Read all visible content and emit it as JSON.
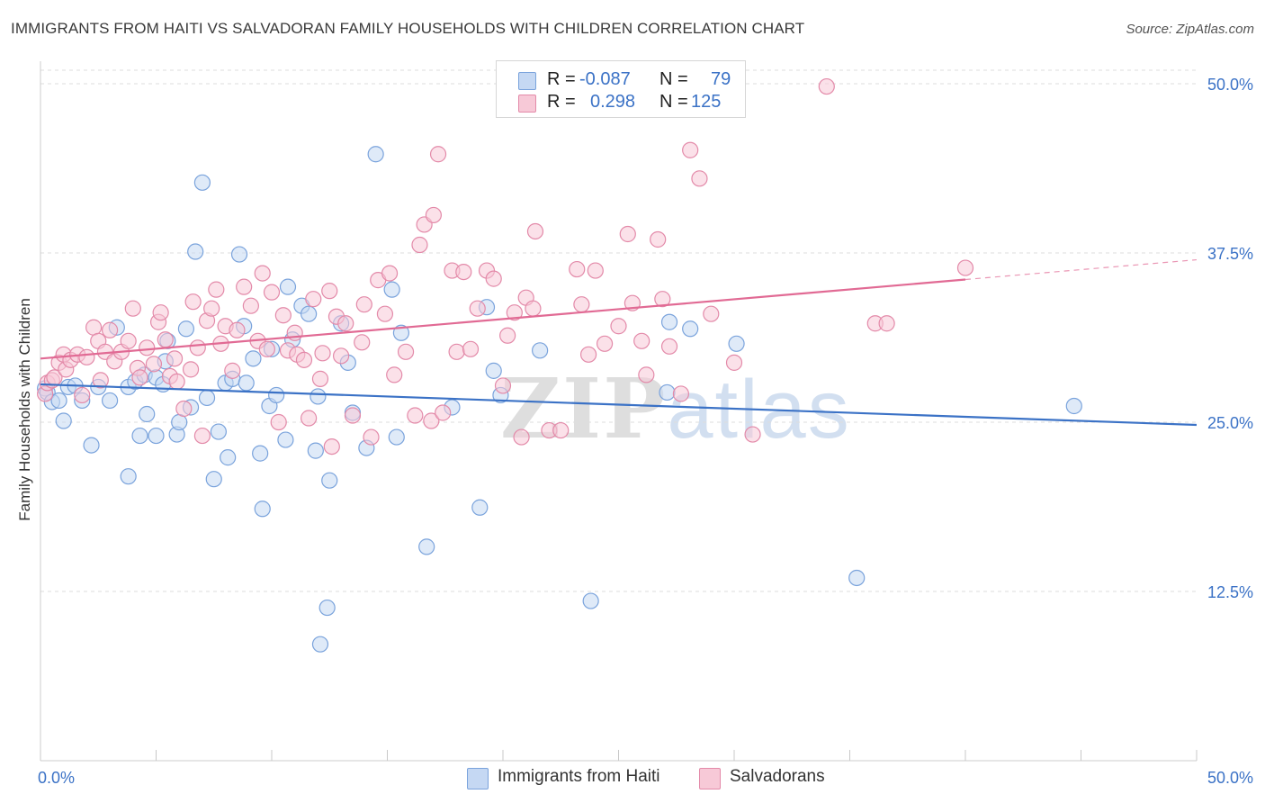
{
  "title": "IMMIGRANTS FROM HAITI VS SALVADORAN FAMILY HOUSEHOLDS WITH CHILDREN CORRELATION CHART",
  "source": "Source: ZipAtlas.com",
  "watermark": {
    "zip": "ZIP",
    "atlas": "atlas"
  },
  "legend_top": [
    {
      "r_label": "R =",
      "r_value": "-0.087",
      "n_label": "N =",
      "n_value": "79",
      "fill": "#c5d8f3",
      "stroke": "#7aa3dc"
    },
    {
      "r_label": "R =",
      "r_value": "0.298",
      "n_label": "N =",
      "n_value": "125",
      "fill": "#f7c9d7",
      "stroke": "#e38aa9"
    }
  ],
  "legend_bottom": [
    {
      "label": "Immigrants from Haiti",
      "fill": "#c5d8f3",
      "stroke": "#7aa3dc"
    },
    {
      "label": "Salvadorans",
      "fill": "#f7c9d7",
      "stroke": "#e38aa9"
    }
  ],
  "colors": {
    "blue": "#3b72c6",
    "pink": "#e16a94",
    "grid": "#dddddd",
    "axis_text": "#3b72c6"
  },
  "chart_data": {
    "type": "scatter",
    "title": "IMMIGRANTS FROM HAITI VS SALVADORAN FAMILY HOUSEHOLDS WITH CHILDREN CORRELATION CHART",
    "xlabel": "",
    "ylabel": "Family Households with Children",
    "xlim": [
      0,
      50
    ],
    "ylim": [
      0,
      51.2
    ],
    "x_tick_labels": [
      "0.0%",
      "50.0%"
    ],
    "y_ticks": [
      12.5,
      25.0,
      37.5,
      50.0
    ],
    "y_tick_labels": [
      "12.5%",
      "25.0%",
      "37.5%",
      "50.0%"
    ],
    "grid": true,
    "legend_position": "bottom",
    "series": [
      {
        "name": "Immigrants from Haiti",
        "color": "#7aa3dc",
        "fill": "#c5d8f3",
        "trend": {
          "x": [
            0,
            50
          ],
          "y": [
            27.8,
            24.8
          ],
          "solid_until": 50
        },
        "points": [
          [
            0.2,
            27.5
          ],
          [
            0.3,
            27.2
          ],
          [
            0.5,
            26.5
          ],
          [
            0.8,
            26.6
          ],
          [
            1.0,
            25.1
          ],
          [
            1.2,
            27.6
          ],
          [
            1.5,
            27.7
          ],
          [
            1.8,
            26.6
          ],
          [
            2.2,
            23.3
          ],
          [
            2.5,
            27.6
          ],
          [
            3.0,
            26.6
          ],
          [
            3.3,
            32.0
          ],
          [
            3.8,
            27.6
          ],
          [
            3.8,
            21.0
          ],
          [
            4.1,
            28.0
          ],
          [
            4.3,
            24.0
          ],
          [
            4.5,
            28.5
          ],
          [
            4.6,
            25.6
          ],
          [
            5.0,
            28.3
          ],
          [
            5.0,
            24.0
          ],
          [
            5.3,
            27.8
          ],
          [
            5.4,
            29.5
          ],
          [
            5.5,
            31.0
          ],
          [
            5.9,
            24.1
          ],
          [
            6.0,
            25.0
          ],
          [
            6.3,
            31.9
          ],
          [
            6.5,
            26.1
          ],
          [
            6.7,
            37.6
          ],
          [
            7.0,
            42.7
          ],
          [
            7.2,
            26.8
          ],
          [
            7.5,
            20.8
          ],
          [
            7.7,
            24.3
          ],
          [
            8.0,
            27.9
          ],
          [
            8.1,
            22.4
          ],
          [
            8.3,
            28.2
          ],
          [
            8.6,
            37.4
          ],
          [
            8.8,
            32.1
          ],
          [
            8.9,
            27.9
          ],
          [
            9.2,
            29.7
          ],
          [
            9.5,
            22.7
          ],
          [
            9.6,
            18.6
          ],
          [
            9.9,
            26.2
          ],
          [
            10.0,
            30.4
          ],
          [
            10.2,
            27.0
          ],
          [
            10.6,
            23.7
          ],
          [
            10.7,
            35.0
          ],
          [
            10.9,
            31.1
          ],
          [
            11.3,
            33.6
          ],
          [
            11.6,
            33.0
          ],
          [
            12.0,
            26.9
          ],
          [
            11.9,
            22.9
          ],
          [
            12.4,
            11.3
          ],
          [
            12.1,
            8.6
          ],
          [
            12.5,
            20.7
          ],
          [
            13.0,
            32.3
          ],
          [
            13.3,
            29.4
          ],
          [
            13.5,
            25.7
          ],
          [
            14.1,
            23.1
          ],
          [
            14.5,
            44.8
          ],
          [
            15.2,
            34.8
          ],
          [
            15.4,
            23.9
          ],
          [
            15.6,
            31.6
          ],
          [
            16.7,
            15.8
          ],
          [
            17.8,
            26.1
          ],
          [
            19.0,
            18.7
          ],
          [
            19.3,
            33.5
          ],
          [
            19.6,
            28.8
          ],
          [
            19.9,
            27.0
          ],
          [
            21.6,
            30.3
          ],
          [
            23.8,
            11.8
          ],
          [
            27.1,
            27.2
          ],
          [
            27.2,
            32.4
          ],
          [
            28.1,
            31.9
          ],
          [
            30.1,
            30.8
          ],
          [
            35.3,
            13.5
          ],
          [
            44.7,
            26.2
          ]
        ]
      },
      {
        "name": "Salvadorans",
        "color": "#e38aa9",
        "fill": "#f7c9d7",
        "trend": {
          "x": [
            0,
            50
          ],
          "y": [
            29.7,
            37.0
          ],
          "solid_until": 40
        },
        "points": [
          [
            0.2,
            27.1
          ],
          [
            0.3,
            27.9
          ],
          [
            0.5,
            28.1
          ],
          [
            0.6,
            28.3
          ],
          [
            0.8,
            29.4
          ],
          [
            1.0,
            30.0
          ],
          [
            1.1,
            28.9
          ],
          [
            1.3,
            29.6
          ],
          [
            1.6,
            30.0
          ],
          [
            1.8,
            27.0
          ],
          [
            2.0,
            29.8
          ],
          [
            2.3,
            32.0
          ],
          [
            2.5,
            31.0
          ],
          [
            2.6,
            28.1
          ],
          [
            2.8,
            30.2
          ],
          [
            3.0,
            31.8
          ],
          [
            3.2,
            29.5
          ],
          [
            3.5,
            30.2
          ],
          [
            3.8,
            31.0
          ],
          [
            4.0,
            33.4
          ],
          [
            4.2,
            29.0
          ],
          [
            4.3,
            28.3
          ],
          [
            4.6,
            30.5
          ],
          [
            4.9,
            29.3
          ],
          [
            5.1,
            32.4
          ],
          [
            5.2,
            33.1
          ],
          [
            5.4,
            31.1
          ],
          [
            5.6,
            28.4
          ],
          [
            5.8,
            29.7
          ],
          [
            5.9,
            28.0
          ],
          [
            6.2,
            26.0
          ],
          [
            6.5,
            28.9
          ],
          [
            6.6,
            33.9
          ],
          [
            6.8,
            30.5
          ],
          [
            7.0,
            24.0
          ],
          [
            7.2,
            32.5
          ],
          [
            7.4,
            33.4
          ],
          [
            7.6,
            34.8
          ],
          [
            7.8,
            30.8
          ],
          [
            8.0,
            32.1
          ],
          [
            8.3,
            28.8
          ],
          [
            8.5,
            31.8
          ],
          [
            8.8,
            35.0
          ],
          [
            9.1,
            33.6
          ],
          [
            9.4,
            31.0
          ],
          [
            9.6,
            36.0
          ],
          [
            9.8,
            30.4
          ],
          [
            10.0,
            34.6
          ],
          [
            10.3,
            25.0
          ],
          [
            10.5,
            32.9
          ],
          [
            10.7,
            30.3
          ],
          [
            11.0,
            31.6
          ],
          [
            11.1,
            30.0
          ],
          [
            11.4,
            29.6
          ],
          [
            11.6,
            25.3
          ],
          [
            11.8,
            34.1
          ],
          [
            12.1,
            28.2
          ],
          [
            12.2,
            30.1
          ],
          [
            12.5,
            34.7
          ],
          [
            12.6,
            23.2
          ],
          [
            12.8,
            32.8
          ],
          [
            13.0,
            29.9
          ],
          [
            13.2,
            32.3
          ],
          [
            13.5,
            25.5
          ],
          [
            13.9,
            30.9
          ],
          [
            14.0,
            33.7
          ],
          [
            14.3,
            23.9
          ],
          [
            14.6,
            35.5
          ],
          [
            14.9,
            33.0
          ],
          [
            15.1,
            36.0
          ],
          [
            15.3,
            28.5
          ],
          [
            15.8,
            30.2
          ],
          [
            16.2,
            25.5
          ],
          [
            16.4,
            38.1
          ],
          [
            16.6,
            39.6
          ],
          [
            16.9,
            25.1
          ],
          [
            17.0,
            40.3
          ],
          [
            17.2,
            44.8
          ],
          [
            17.4,
            25.7
          ],
          [
            17.8,
            36.2
          ],
          [
            18.0,
            30.2
          ],
          [
            18.3,
            36.1
          ],
          [
            18.6,
            30.4
          ],
          [
            18.9,
            33.4
          ],
          [
            19.3,
            36.2
          ],
          [
            19.6,
            35.6
          ],
          [
            20.0,
            27.7
          ],
          [
            20.2,
            31.4
          ],
          [
            20.5,
            33.1
          ],
          [
            20.8,
            23.9
          ],
          [
            21.0,
            34.2
          ],
          [
            21.3,
            33.4
          ],
          [
            21.4,
            39.1
          ],
          [
            22.0,
            24.4
          ],
          [
            22.5,
            24.4
          ],
          [
            23.2,
            36.3
          ],
          [
            23.4,
            33.7
          ],
          [
            23.7,
            30.0
          ],
          [
            24.0,
            36.2
          ],
          [
            24.4,
            30.8
          ],
          [
            25.0,
            32.1
          ],
          [
            25.4,
            38.9
          ],
          [
            25.6,
            33.8
          ],
          [
            26.0,
            31.0
          ],
          [
            26.2,
            28.5
          ],
          [
            26.7,
            38.5
          ],
          [
            26.9,
            34.1
          ],
          [
            27.2,
            30.6
          ],
          [
            27.7,
            27.1
          ],
          [
            28.1,
            45.1
          ],
          [
            28.5,
            43.0
          ],
          [
            29.0,
            33.0
          ],
          [
            30.0,
            29.4
          ],
          [
            30.8,
            24.1
          ],
          [
            34.0,
            49.8
          ],
          [
            36.1,
            32.3
          ],
          [
            36.6,
            32.3
          ],
          [
            40.0,
            36.4
          ]
        ]
      }
    ]
  }
}
